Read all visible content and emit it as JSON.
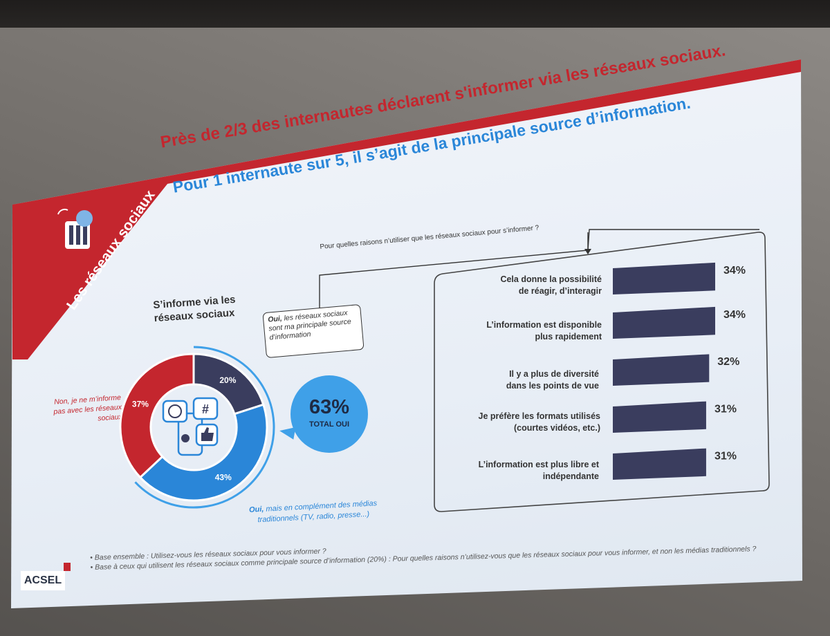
{
  "slide": {
    "section_label": "Les réseaux sociaux",
    "title_line1": "Près de 2/3 des internautes déclarent s'informer via les réseaux sociaux.",
    "title_line2": "Pour 1 internaute sur 5, il s’agit de la principale source d’information.",
    "question": "Pour quelles raisons n’utiliser que les réseaux sociaux pour s’informer ?",
    "left_heading": [
      "S’informe via les",
      "réseaux sociaux"
    ],
    "callout_bold": "Oui,",
    "callout_text": " les réseaux sociaux sont ma principale source d’information",
    "legend_non": "Non, je ne m’informe pas avec les réseaux sociaux",
    "legend_oui_bold": "Oui,",
    "legend_oui_text": " mais en complément des médias traditionnels (TV, radio, presse...)",
    "total_pct": "63%",
    "total_label": "TOTAL OUI",
    "logo": "ACSEL",
    "footnotes": [
      "Base ensemble : Utilisez-vous les réseaux sociaux pour vous informer ?",
      "Base à ceux qui utilisent les réseaux sociaux comme principale source d’information (20%) : Pour quelles raisons n’utilisez-vous que les réseaux sociaux pour vous informer, et non les médias traditionnels ?"
    ]
  },
  "colors": {
    "red": "#c4262e",
    "navy": "#3a3d5e",
    "blue": "#2a86d8",
    "light_blue": "#3fa0e8"
  },
  "chart_data": [
    {
      "type": "pie",
      "title": "S’informe via les réseaux sociaux",
      "categories": [
        "Oui, les réseaux sociaux sont ma principale source d’information",
        "Oui, mais en complément des médias traditionnels (TV, radio, presse...)",
        "Non, je ne m’informe pas avec les réseaux sociaux"
      ],
      "values": [
        20,
        43,
        37
      ],
      "labels": [
        "20%",
        "43%",
        "37%"
      ],
      "colors": [
        "#3a3d5e",
        "#2a86d8",
        "#c4262e"
      ]
    },
    {
      "type": "bar",
      "orientation": "horizontal",
      "title": "Pour quelles raisons n’utiliser que les réseaux sociaux pour s’informer ?",
      "categories": [
        [
          "Cela donne la possibilité",
          "de réagir, d’interagir"
        ],
        [
          "L’information est disponible",
          "plus rapidement"
        ],
        [
          "Il y a plus de diversité",
          "dans les points de vue"
        ],
        [
          "Je préfère les formats utilisés",
          "(courtes vidéos, etc.)"
        ],
        [
          "L’information est plus libre et",
          "indépendante"
        ]
      ],
      "values": [
        34,
        34,
        32,
        31,
        31
      ],
      "labels": [
        "34%",
        "34%",
        "32%",
        "31%",
        "31%"
      ],
      "color": "#3a3d5e"
    }
  ]
}
